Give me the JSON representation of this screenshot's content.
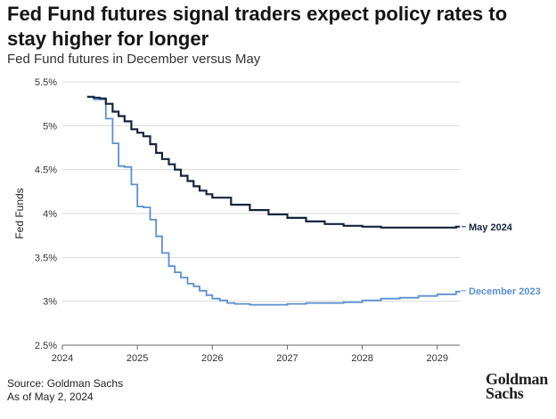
{
  "header": {
    "title": "Fed Fund futures signal traders expect policy rates to stay higher for longer",
    "subtitle": "Fed Fund futures in December versus May"
  },
  "footer": {
    "source": "Source: Goldman Sachs",
    "asof": "As of May 2, 2024"
  },
  "logo": {
    "line1": "Goldman",
    "line2": "Sachs"
  },
  "colors": {
    "may": "#14243f",
    "dec": "#5b8fd0",
    "grid": "#d9d9d9",
    "axis": "#666666"
  },
  "chart_data": {
    "type": "line",
    "title": "Fed Fund futures signal traders expect policy rates to stay higher for longer",
    "subtitle": "Fed Fund futures in December versus May",
    "xlabel": "",
    "ylabel": "Fed Funds",
    "xlim": [
      2024,
      2029.3
    ],
    "ylim": [
      2.5,
      5.5
    ],
    "x_ticks": [
      2024,
      2025,
      2026,
      2027,
      2028,
      2029
    ],
    "x_tick_labels": [
      "2024",
      "2025",
      "2026",
      "2027",
      "2028",
      "2029"
    ],
    "y_ticks": [
      2.5,
      3,
      3.5,
      4,
      4.5,
      5,
      5.5
    ],
    "y_tick_labels": [
      "2.5%",
      "3%",
      "3.5%",
      "4%",
      "4.5%",
      "5%",
      "5.5%"
    ],
    "grid": "horizontal",
    "series": [
      {
        "name": "May 2024",
        "color": "#14243f",
        "x": [
          2024.33,
          2024.42,
          2024.5,
          2024.58,
          2024.67,
          2024.75,
          2024.83,
          2024.92,
          2025.0,
          2025.08,
          2025.17,
          2025.25,
          2025.33,
          2025.42,
          2025.5,
          2025.58,
          2025.67,
          2025.75,
          2025.83,
          2025.92,
          2026.0,
          2026.25,
          2026.5,
          2026.75,
          2027.0,
          2027.25,
          2027.5,
          2027.75,
          2028.0,
          2028.25,
          2028.5,
          2028.75,
          2029.0,
          2029.25,
          2029.3
        ],
        "y": [
          5.33,
          5.32,
          5.31,
          5.25,
          5.16,
          5.11,
          5.05,
          4.96,
          4.92,
          4.88,
          4.79,
          4.69,
          4.62,
          4.56,
          4.5,
          4.43,
          4.37,
          4.31,
          4.26,
          4.22,
          4.18,
          4.1,
          4.04,
          3.99,
          3.95,
          3.91,
          3.88,
          3.86,
          3.85,
          3.84,
          3.84,
          3.84,
          3.84,
          3.85,
          3.85
        ]
      },
      {
        "name": "December 2023",
        "color": "#5b8fd0",
        "x": [
          2024.33,
          2024.42,
          2024.5,
          2024.58,
          2024.67,
          2024.75,
          2024.83,
          2024.92,
          2025.0,
          2025.08,
          2025.17,
          2025.25,
          2025.33,
          2025.42,
          2025.5,
          2025.58,
          2025.67,
          2025.75,
          2025.83,
          2025.92,
          2026.0,
          2026.1,
          2026.2,
          2026.3,
          2026.5,
          2026.75,
          2027.0,
          2027.25,
          2027.5,
          2027.75,
          2028.0,
          2028.25,
          2028.5,
          2028.75,
          2029.0,
          2029.25,
          2029.3
        ],
        "y": [
          5.33,
          5.3,
          5.3,
          5.08,
          4.8,
          4.54,
          4.53,
          4.33,
          4.08,
          4.07,
          3.93,
          3.74,
          3.55,
          3.4,
          3.33,
          3.27,
          3.2,
          3.17,
          3.12,
          3.07,
          3.03,
          3.01,
          2.98,
          2.97,
          2.96,
          2.96,
          2.97,
          2.98,
          2.98,
          2.99,
          3.01,
          3.03,
          3.04,
          3.06,
          3.08,
          3.11,
          3.12
        ]
      }
    ]
  }
}
